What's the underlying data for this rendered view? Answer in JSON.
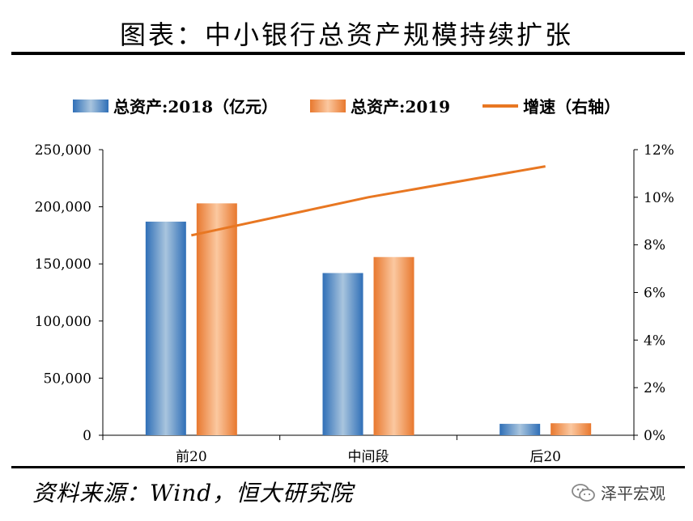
{
  "header": {
    "title": "图表：中小银行总资产规模持续扩张"
  },
  "footer": {
    "source": "资料来源：Wind，恒大研究院",
    "watermark": "泽平宏观"
  },
  "colors": {
    "bar2018": "#2f6fb7",
    "bar2018_light": "#a9c5de",
    "bar2019": "#e8782e",
    "bar2019_light": "#fbc8a0",
    "line": "#e87722"
  },
  "icons": {
    "wechat": "wechat-icon"
  },
  "chart_data": {
    "type": "bar",
    "categories": [
      "前20",
      "中间段",
      "后20"
    ],
    "series": [
      {
        "name": "总资产:2018（亿元）",
        "type": "bar",
        "axis": "left",
        "values": [
          187000,
          142000,
          10000
        ]
      },
      {
        "name": "总资产:2019",
        "type": "bar",
        "axis": "left",
        "values": [
          203000,
          156000,
          10500
        ]
      },
      {
        "name": "增速（右轴）",
        "type": "line",
        "axis": "right",
        "values": [
          0.084,
          0.1,
          0.113
        ]
      }
    ],
    "y_left": {
      "ylim": [
        0,
        250000
      ],
      "ticks": [
        0,
        50000,
        100000,
        150000,
        200000,
        250000
      ],
      "tick_labels": [
        "0",
        "50,000",
        "100,000",
        "150,000",
        "200,000",
        "250,000"
      ]
    },
    "y_right": {
      "ylim": [
        0,
        0.12
      ],
      "ticks": [
        0,
        0.02,
        0.04,
        0.06,
        0.08,
        0.1,
        0.12
      ],
      "tick_labels": [
        "0%",
        "2%",
        "4%",
        "6%",
        "8%",
        "10%",
        "12%"
      ]
    },
    "legend": {
      "position": "top",
      "labels": [
        "总资产:2018（亿元）",
        "总资产:2019",
        "增速（右轴）"
      ]
    },
    "grid": false
  }
}
